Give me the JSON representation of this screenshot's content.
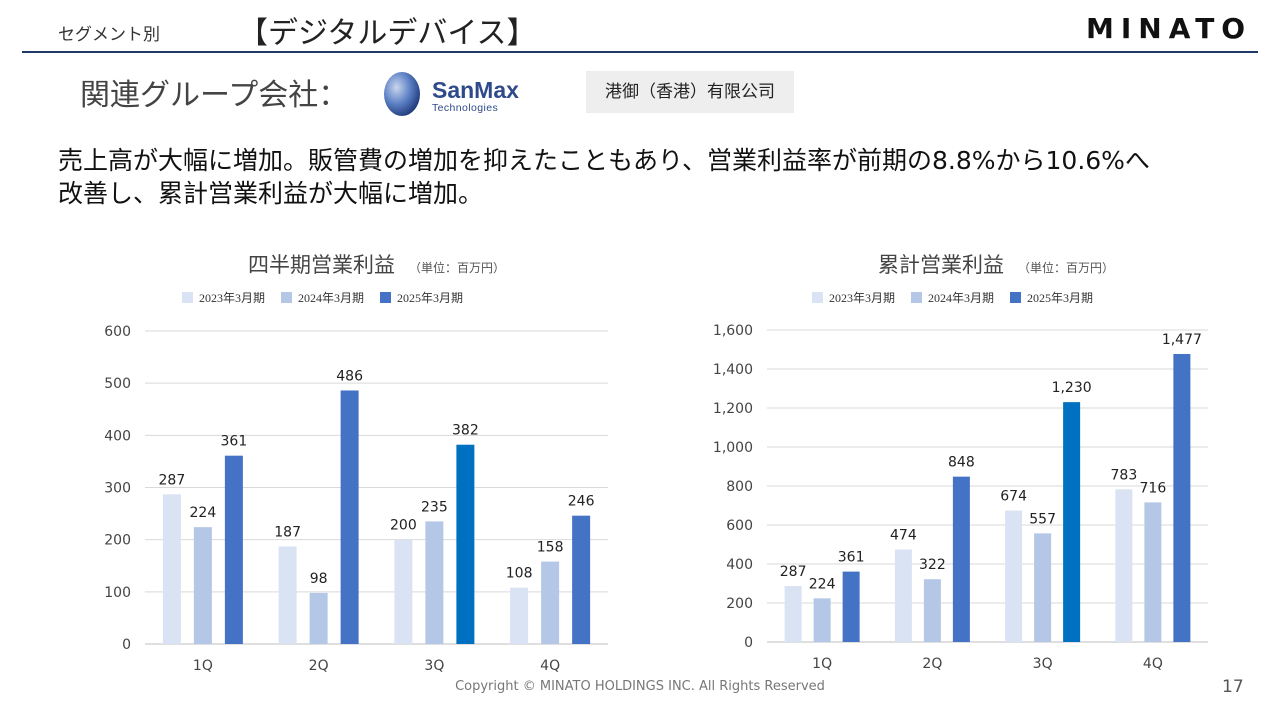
{
  "header": {
    "segment_label": "セグメント別",
    "segment_title": "【デジタルデバイス】",
    "logo_text": "MINATO"
  },
  "subheader": {
    "related_label": "関連グループ会社：",
    "sanmax_logo": "SanMax Technologies",
    "company_name": "港御（香港）有限公司"
  },
  "description": {
    "line1": "売上高が大幅に増加。販管費の増加を抑えたこともあり、営業利益率が前期の8.8%から10.6%へ",
    "line2": "改善し、累計営業利益が大幅に増加。"
  },
  "colors": {
    "fy2023": "#dae3f3",
    "fy2024": "#b4c7e7",
    "fy2025": "#4472c4",
    "fy2025_alt": "#0070c0"
  },
  "chart_data": [
    {
      "type": "bar",
      "title": "四半期営業利益",
      "unit_label": "（単位：百万円）",
      "categories": [
        "1Q",
        "2Q",
        "3Q",
        "4Q"
      ],
      "series": [
        {
          "name": "2023年3月期",
          "values": [
            287,
            187,
            200,
            108
          ]
        },
        {
          "name": "2024年3月期",
          "values": [
            224,
            98,
            235,
            158
          ]
        },
        {
          "name": "2025年3月期",
          "values": [
            361,
            486,
            382,
            246
          ]
        }
      ],
      "ylim": [
        0,
        600
      ],
      "yticks": [
        0,
        100,
        200,
        300,
        400,
        500,
        600
      ],
      "ytick_labels": [
        "0",
        "100",
        "200",
        "300",
        "400",
        "500",
        "600"
      ],
      "grid": true,
      "legend": "top"
    },
    {
      "type": "bar",
      "title": "累計営業利益",
      "unit_label": "（単位：百万円）",
      "categories": [
        "1Q",
        "2Q",
        "3Q",
        "4Q"
      ],
      "series": [
        {
          "name": "2023年3月期",
          "values": [
            287,
            474,
            674,
            783
          ]
        },
        {
          "name": "2024年3月期",
          "values": [
            224,
            322,
            557,
            716
          ]
        },
        {
          "name": "2025年3月期",
          "values": [
            361,
            848,
            1230,
            1477
          ]
        }
      ],
      "ylim": [
        0,
        1600
      ],
      "yticks": [
        0,
        200,
        400,
        600,
        800,
        1000,
        1200,
        1400,
        1600
      ],
      "ytick_labels": [
        "0",
        "200",
        "400",
        "600",
        "800",
        "1,000",
        "1,200",
        "1,400",
        "1,600"
      ],
      "value_labels": [
        [
          "287",
          "474",
          "674",
          "783"
        ],
        [
          "224",
          "322",
          "557",
          "716"
        ],
        [
          "361",
          "848",
          "1,230",
          "1,477"
        ]
      ],
      "grid": true,
      "legend": "top"
    }
  ],
  "footer": {
    "copyright": "Copyright © MINATO HOLDINGS INC. All Rights Reserved",
    "page_number": "17"
  }
}
